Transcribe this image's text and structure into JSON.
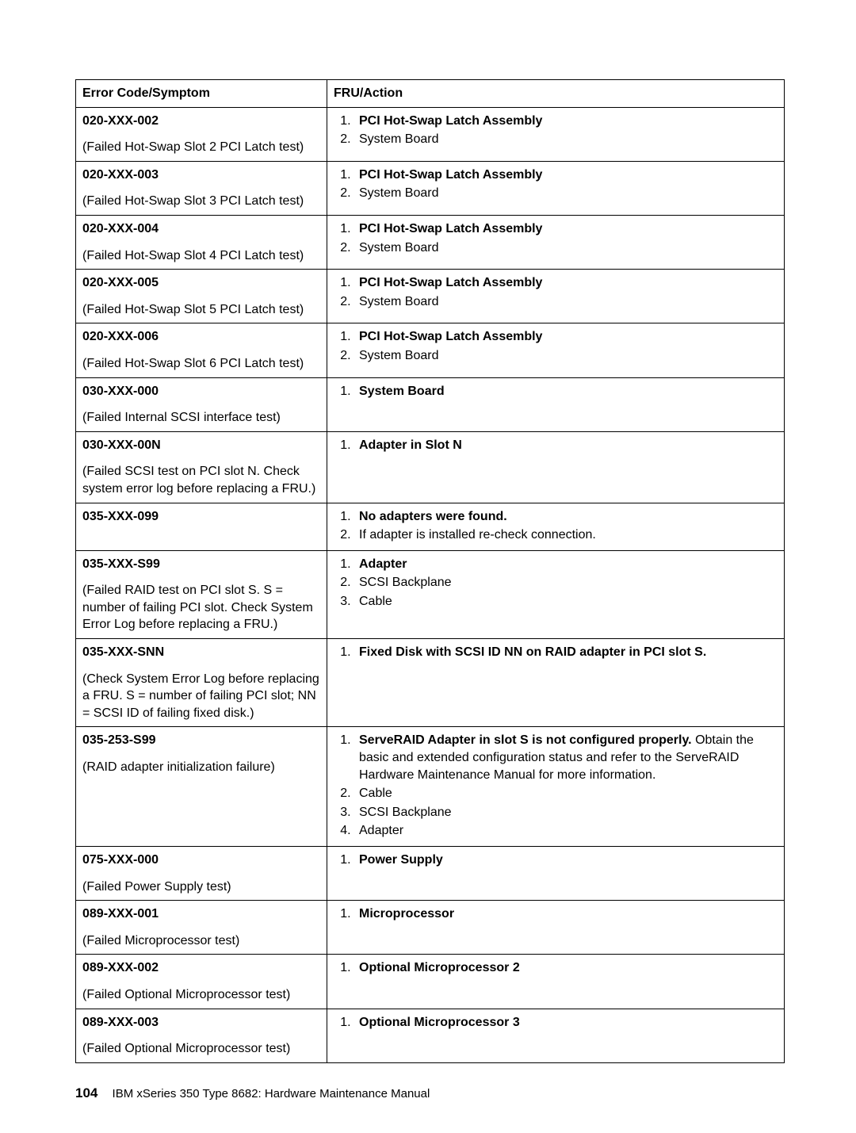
{
  "header": {
    "col_left": "Error Code/Symptom",
    "col_right": "FRU/Action"
  },
  "rows": [
    {
      "code": "020-XXX-002",
      "desc": "(Failed Hot-Swap Slot 2 PCI Latch test)",
      "actions": [
        {
          "bold": "PCI Hot-Swap Latch Assembly"
        },
        {
          "text": "System Board"
        }
      ]
    },
    {
      "code": "020-XXX-003",
      "desc": "(Failed Hot-Swap Slot 3 PCI Latch test)",
      "actions": [
        {
          "bold": "PCI Hot-Swap Latch Assembly"
        },
        {
          "text": "System Board"
        }
      ]
    },
    {
      "code": "020-XXX-004",
      "desc": "(Failed Hot-Swap Slot 4 PCI Latch test)",
      "actions": [
        {
          "bold": "PCI Hot-Swap Latch Assembly"
        },
        {
          "text": "System Board"
        }
      ]
    },
    {
      "code": "020-XXX-005",
      "desc": "(Failed Hot-Swap Slot 5 PCI Latch test)",
      "actions": [
        {
          "bold": "PCI Hot-Swap Latch Assembly"
        },
        {
          "text": "System Board"
        }
      ]
    },
    {
      "code": "020-XXX-006",
      "desc": "(Failed Hot-Swap Slot 6 PCI Latch test)",
      "actions": [
        {
          "bold": "PCI Hot-Swap Latch Assembly"
        },
        {
          "text": "System Board"
        }
      ]
    },
    {
      "code": "030-XXX-000",
      "desc": "(Failed Internal SCSI interface test)",
      "actions": [
        {
          "bold": "System Board"
        }
      ]
    },
    {
      "code": "030-XXX-00N",
      "desc": "(Failed SCSI test on PCI slot N. Check system error log before replacing a FRU.)",
      "actions": [
        {
          "bold": "Adapter in Slot N"
        }
      ]
    },
    {
      "code": "035-XXX-099",
      "desc": "",
      "actions": [
        {
          "bold": "No adapters were found."
        },
        {
          "text": "If adapter is installed re-check connection."
        }
      ]
    },
    {
      "code": "035-XXX-S99",
      "desc": "(Failed RAID test on PCI slot S. S = number of failing PCI slot. Check System Error Log before replacing a FRU.)",
      "actions": [
        {
          "bold": "Adapter"
        },
        {
          "text": "SCSI Backplane"
        },
        {
          "text": "Cable"
        }
      ]
    },
    {
      "code": "035-XXX-SNN",
      "desc": "(Check System Error Log before replacing a FRU. S = number of failing PCI slot; NN = SCSI ID of failing fixed disk.)",
      "actions": [
        {
          "bold": "Fixed Disk with SCSI ID NN on RAID adapter in PCI slot S."
        }
      ]
    },
    {
      "code": "035-253-S99",
      "desc": "(RAID adapter initialization failure)",
      "actions": [
        {
          "bold": "ServeRAID Adapter in slot S is not configured properly.",
          "tail": " Obtain the basic and extended configuration status and refer to the ServeRAID Hardware Maintenance Manual for more information."
        },
        {
          "text": "Cable"
        },
        {
          "text": "SCSI Backplane"
        },
        {
          "text": "Adapter"
        }
      ]
    },
    {
      "code": "075-XXX-000",
      "desc": "(Failed Power Supply test)",
      "actions": [
        {
          "bold": "Power Supply"
        }
      ]
    },
    {
      "code": "089-XXX-001",
      "desc": "(Failed Microprocessor test)",
      "actions": [
        {
          "bold": "Microprocessor"
        }
      ]
    },
    {
      "code": "089-XXX-002",
      "desc": "(Failed Optional Microprocessor test)",
      "actions": [
        {
          "bold": "Optional Microprocessor 2"
        }
      ]
    },
    {
      "code": "089-XXX-003",
      "desc": "(Failed Optional Microprocessor test)",
      "actions": [
        {
          "bold": "Optional Microprocessor 3"
        }
      ]
    }
  ],
  "footer": {
    "page_number": "104",
    "title": "IBM xSeries 350 Type 8682: Hardware Maintenance Manual"
  }
}
